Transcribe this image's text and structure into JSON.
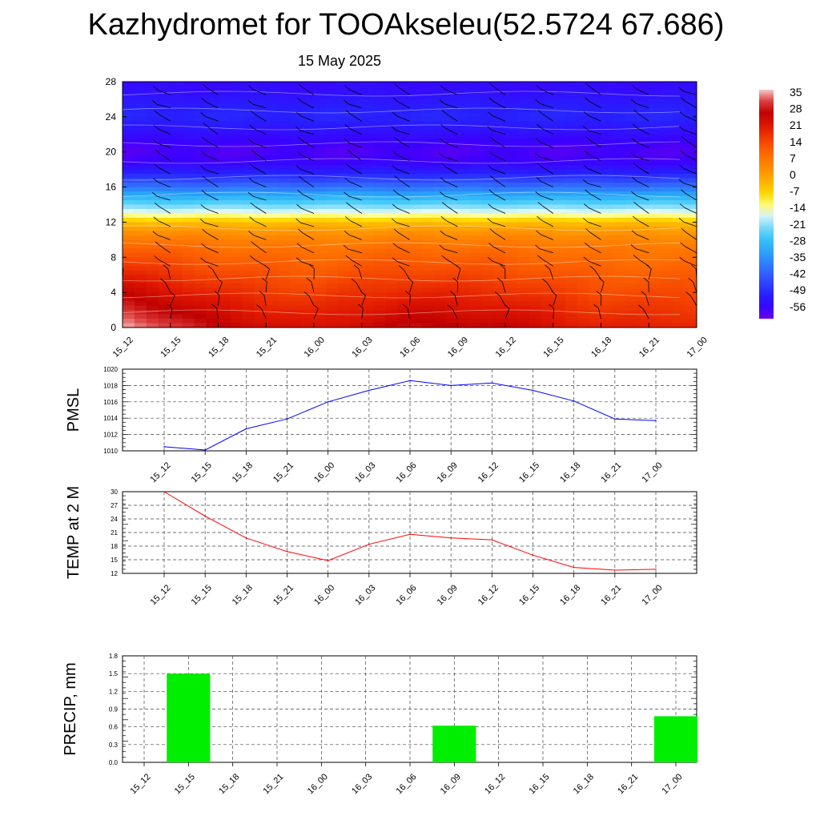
{
  "title": "Kazhydromet for TOOAkseleu(52.5724 67.686)",
  "date": "15 May 2025",
  "chart_data": [
    {
      "type": "heatmap",
      "categories": [
        "15_12",
        "15_15",
        "15_18",
        "15_21",
        "16_00",
        "16_03",
        "16_06",
        "16_09",
        "16_12",
        "16_15",
        "16_18",
        "16_21",
        "17_00"
      ],
      "y_ticks": [
        0,
        4,
        8,
        12,
        16,
        20,
        24,
        28
      ],
      "ylim": [
        0,
        28
      ],
      "colorbar": {
        "labels": [
          "35",
          "28",
          "21",
          "14",
          "7",
          "0",
          "-7",
          "-14",
          "-21",
          "-28",
          "-35",
          "-42",
          "-49",
          "-56"
        ],
        "range": [
          -60,
          38
        ]
      },
      "profile": {
        "z": [
          0,
          1,
          2,
          3,
          4,
          5,
          6,
          7,
          8,
          9,
          10,
          11,
          12,
          13,
          14,
          15,
          16,
          17,
          18,
          19,
          20,
          21,
          22,
          23,
          24,
          25,
          26,
          27,
          28
        ],
        "temp": [
          28,
          26,
          24,
          22,
          20,
          18,
          16,
          14,
          12,
          10,
          7,
          3,
          -4,
          -14,
          -22,
          -30,
          -38,
          -46,
          -52,
          -57,
          -58,
          -57,
          -54,
          -51,
          -49,
          -50,
          -52,
          -54,
          -55
        ]
      },
      "surface_temp": [
        30,
        25,
        20,
        17,
        15,
        18,
        21,
        20,
        19,
        16,
        13,
        13,
        13
      ],
      "grid": false
    },
    {
      "type": "line",
      "ylabel": "PMSL",
      "categories": [
        "15_12",
        "15_15",
        "15_18",
        "15_21",
        "16_00",
        "16_03",
        "16_06",
        "16_09",
        "16_12",
        "16_15",
        "16_18",
        "16_21",
        "17_00"
      ],
      "y_ticks": [
        1010,
        1012,
        1014,
        1016,
        1018,
        1020
      ],
      "ylim": [
        1010,
        1020
      ],
      "series": [
        {
          "color": "#0000ff",
          "values": [
            1010.5,
            1010.1,
            1012.7,
            1013.9,
            1016.0,
            1017.4,
            1018.6,
            1018.0,
            1018.3,
            1017.4,
            1016.1,
            1013.9,
            1013.7
          ]
        }
      ],
      "grid": true
    },
    {
      "type": "line",
      "ylabel": "TEMP at 2 M",
      "categories": [
        "15_12",
        "15_15",
        "15_18",
        "15_21",
        "16_00",
        "16_03",
        "16_06",
        "16_09",
        "16_12",
        "16_15",
        "16_18",
        "16_21",
        "17_00"
      ],
      "y_ticks": [
        12,
        15,
        18,
        21,
        24,
        27,
        30
      ],
      "ylim": [
        12,
        30
      ],
      "series": [
        {
          "color": "#ff0000",
          "values": [
            30.0,
            24.6,
            19.8,
            16.8,
            14.8,
            18.4,
            20.6,
            19.8,
            19.4,
            16.0,
            13.3,
            12.7,
            12.9
          ]
        }
      ],
      "grid": true
    },
    {
      "type": "bar",
      "ylabel": "PRECIP, mm",
      "categories": [
        "15_12",
        "15_15",
        "15_18",
        "15_21",
        "16_00",
        "16_03",
        "16_06",
        "16_09",
        "16_12",
        "16_15",
        "16_18",
        "16_21",
        "17_00"
      ],
      "y_ticks": [
        "0.0",
        "0.3",
        "0.6",
        "0.9",
        "1.2",
        "1.5",
        "1.8"
      ],
      "ylim": [
        0,
        1.8
      ],
      "values": [
        0,
        1.5,
        0,
        0,
        0,
        0,
        0,
        0.62,
        0,
        0,
        0,
        0,
        0.78
      ],
      "bar_color": "#00ee00",
      "grid": true
    }
  ]
}
